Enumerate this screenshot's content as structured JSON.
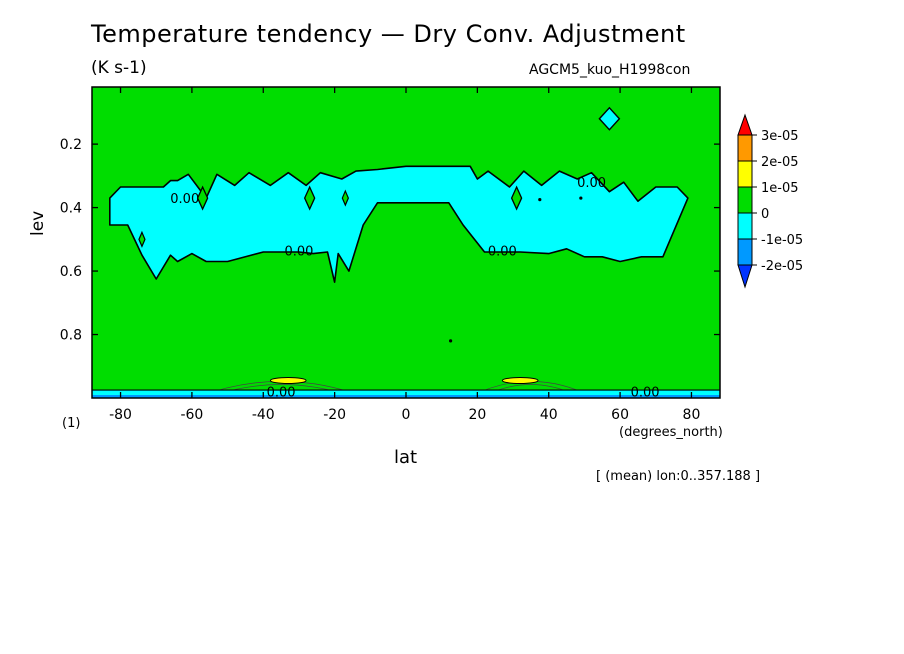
{
  "chart_data": {
    "type": "contour",
    "title": "Temperature tendency — Dry Conv. Adjustment",
    "units": "(K s-1)",
    "run_label": "AGCM5_kuo_H1998con",
    "xlabel": "lat",
    "ylabel": "lev",
    "x_unit": "(degrees_north)",
    "y_unit": "(1)",
    "mean_note": "[ (mean) lon:0..357.188 ]",
    "xlim": [
      -88,
      88
    ],
    "ylim": [
      1.0,
      0.02
    ],
    "x_ticks": [
      -80,
      -60,
      -40,
      -20,
      0,
      20,
      40,
      60,
      80
    ],
    "x_tick_labels": [
      "-80",
      "-60",
      "-40",
      "-20",
      "0",
      "20",
      "40",
      "60",
      "80"
    ],
    "y_ticks": [
      0.2,
      0.4,
      0.6,
      0.8
    ],
    "y_tick_labels": [
      "0.2",
      "0.4",
      "0.6",
      "0.8"
    ],
    "contour_label": "0.00",
    "contour_label_positions": [
      [
        -62,
        0.37
      ],
      [
        -30,
        0.535
      ],
      [
        27,
        0.535
      ],
      [
        52,
        0.32
      ],
      [
        67,
        0.98
      ],
      [
        -35,
        0.98
      ]
    ],
    "levels": [
      -2e-05,
      -1e-05,
      0,
      1e-05,
      2e-05,
      3e-05
    ],
    "colorbar": {
      "labels": [
        "3e-05",
        "2e-05",
        "1e-05",
        "0",
        "-1e-05",
        "-2e-05"
      ],
      "colors": [
        "#ff0000",
        "#ff9900",
        "#ffff00",
        "#00dd00",
        "#00ffff",
        "#0099ff",
        "#0033ff"
      ],
      "bands": [
        {
          "color": "#ff9900"
        },
        {
          "color": "#ffff00"
        },
        {
          "color": "#00dd00"
        },
        {
          "color": "#00ffff"
        },
        {
          "color": "#0099ff"
        }
      ]
    },
    "regions": {
      "background": {
        "value_range": [
          0,
          1e-05
        ],
        "color": "#00dd00"
      },
      "upper_band": {
        "value_range": [
          -1e-05,
          0
        ],
        "color": "#00ffff",
        "outline": [
          [
            -83,
            0.37
          ],
          [
            -80,
            0.335
          ],
          [
            -78,
            0.335
          ],
          [
            -73,
            0.335
          ],
          [
            -68,
            0.335
          ],
          [
            -66,
            0.315
          ],
          [
            -64,
            0.315
          ],
          [
            -61,
            0.295
          ],
          [
            -56,
            0.37
          ],
          [
            -53,
            0.295
          ],
          [
            -48,
            0.33
          ],
          [
            -44,
            0.29
          ],
          [
            -38,
            0.33
          ],
          [
            -33,
            0.29
          ],
          [
            -28,
            0.33
          ],
          [
            -24,
            0.29
          ],
          [
            -18,
            0.31
          ],
          [
            -14,
            0.285
          ],
          [
            -8,
            0.28
          ],
          [
            0,
            0.27
          ],
          [
            10,
            0.27
          ],
          [
            18,
            0.27
          ],
          [
            20,
            0.31
          ],
          [
            23,
            0.285
          ],
          [
            29,
            0.335
          ],
          [
            33,
            0.285
          ],
          [
            38,
            0.33
          ],
          [
            43,
            0.285
          ],
          [
            48,
            0.31
          ],
          [
            52,
            0.29
          ],
          [
            57,
            0.35
          ],
          [
            61,
            0.32
          ],
          [
            65,
            0.38
          ],
          [
            70,
            0.335
          ],
          [
            76,
            0.335
          ],
          [
            79,
            0.37
          ],
          [
            72,
            0.555
          ],
          [
            66,
            0.555
          ],
          [
            60,
            0.57
          ],
          [
            55,
            0.555
          ],
          [
            50,
            0.555
          ],
          [
            45,
            0.53
          ],
          [
            40,
            0.545
          ],
          [
            32,
            0.54
          ],
          [
            22,
            0.54
          ],
          [
            16,
            0.455
          ],
          [
            12,
            0.385
          ],
          [
            -8,
            0.385
          ],
          [
            -12,
            0.455
          ],
          [
            -16,
            0.6
          ],
          [
            -19,
            0.545
          ],
          [
            -20,
            0.635
          ],
          [
            -22,
            0.54
          ],
          [
            -26,
            0.545
          ],
          [
            -30,
            0.54
          ],
          [
            -40,
            0.54
          ],
          [
            -50,
            0.57
          ],
          [
            -56,
            0.57
          ],
          [
            -60,
            0.545
          ],
          [
            -64,
            0.57
          ],
          [
            -66,
            0.55
          ],
          [
            -70,
            0.625
          ],
          [
            -74,
            0.55
          ],
          [
            -78,
            0.455
          ],
          [
            -83,
            0.455
          ]
        ]
      },
      "isolated_blue": [
        [
          57,
          0.12
        ]
      ],
      "surface_band": {
        "value_range": [
          -2e-05,
          -1e-05
        ],
        "color": "#0099ff",
        "lev_range": [
          0.975,
          1.0
        ]
      },
      "yellow_cells": [
        {
          "color": "#ffff00",
          "lat_range": [
            -38,
            -28
          ],
          "lev": 0.945
        },
        {
          "color": "#ffff00",
          "lat_range": [
            27,
            37
          ],
          "lev": 0.945
        }
      ]
    }
  }
}
